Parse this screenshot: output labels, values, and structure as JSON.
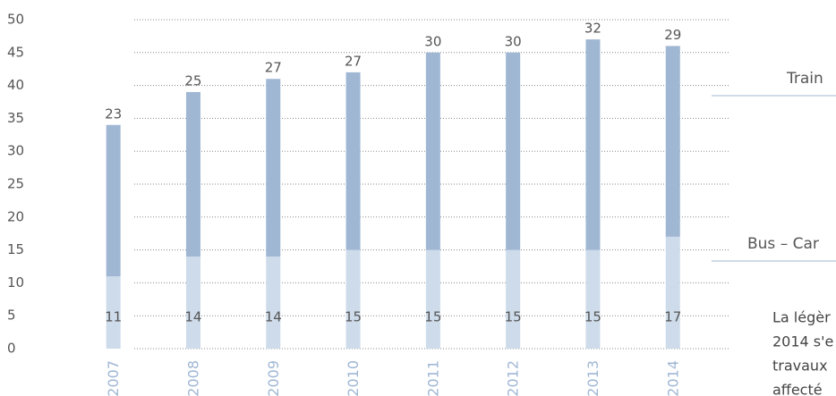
{
  "chart_data": {
    "type": "stacked_bar",
    "categories": [
      "2007",
      "2008",
      "2009",
      "2010",
      "2011",
      "2012",
      "2013",
      "2014"
    ],
    "series": [
      {
        "name": "Bus – Car",
        "color": "#cddbea",
        "values": [
          11,
          14,
          14,
          15,
          15,
          15,
          15,
          17
        ]
      },
      {
        "name": "Train",
        "color": "#a0b7d4",
        "values": [
          23,
          25,
          27,
          27,
          30,
          30,
          32,
          29
        ]
      }
    ],
    "ylim": [
      0,
      50
    ],
    "yticks": [
      0,
      5,
      10,
      15,
      20,
      25,
      30,
      35,
      40,
      45,
      50
    ],
    "grid": true,
    "note": [
      "La légèr",
      "2014 s'e",
      "travaux",
      "affecté"
    ]
  }
}
